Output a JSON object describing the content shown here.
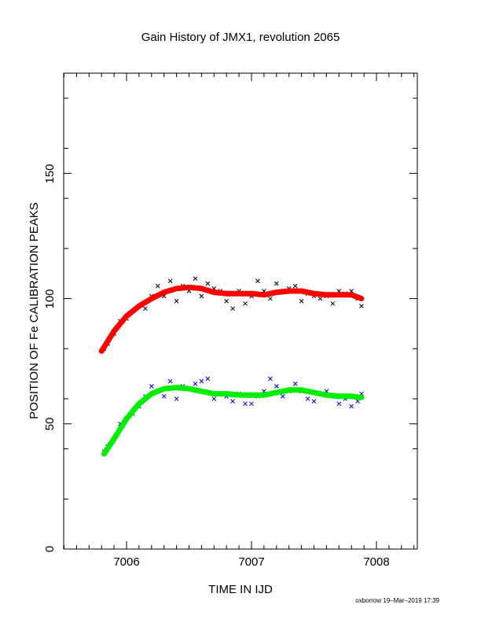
{
  "chart_data": {
    "type": "scatter",
    "title": "Gain History of JMX1, revolution 2065",
    "xlabel": "TIME IN IJD",
    "ylabel": "POSITION OF Fe CALIBRATION PEAKS",
    "xlim": [
      7005.5,
      7008.35
    ],
    "ylim": [
      0,
      190
    ],
    "x_ticks": [
      "7006",
      "7007",
      "7008"
    ],
    "y_ticks": [
      "0",
      "50",
      "100",
      "150"
    ],
    "grid": false,
    "legend": "none",
    "series": [
      {
        "marker": "x",
        "color": "#000000",
        "x": [
          7005.82,
          7005.85,
          7005.9,
          7005.95,
          7006.0,
          7006.05,
          7006.1,
          7006.15,
          7006.2,
          7006.25,
          7006.3,
          7006.35,
          7006.4,
          7006.45,
          7006.5,
          7006.55,
          7006.6,
          7006.65,
          7006.7,
          7006.75,
          7006.8,
          7006.85,
          7006.9,
          7006.95,
          7007.0,
          7007.05,
          7007.1,
          7007.15,
          7007.2,
          7007.25,
          7007.3,
          7007.35,
          7007.4,
          7007.45,
          7007.5,
          7007.55,
          7007.6,
          7007.65,
          7007.7,
          7007.75,
          7007.8,
          7007.85,
          7007.88
        ],
        "y": [
          80,
          82,
          86,
          91,
          92,
          95,
          97,
          96,
          101,
          105,
          101,
          107,
          99,
          105,
          103,
          108,
          101,
          106,
          104,
          103,
          99,
          96,
          103,
          98,
          101,
          107,
          103,
          100,
          106,
          103,
          104,
          105,
          99,
          102,
          101,
          100,
          101,
          98,
          103,
          102,
          103,
          100,
          97
        ]
      },
      {
        "marker": "x",
        "color": "#0000cc",
        "x": [
          7005.82,
          7005.85,
          7005.9,
          7005.95,
          7006.0,
          7006.05,
          7006.1,
          7006.15,
          7006.2,
          7006.25,
          7006.3,
          7006.35,
          7006.4,
          7006.45,
          7006.5,
          7006.55,
          7006.6,
          7006.65,
          7006.7,
          7006.75,
          7006.8,
          7006.85,
          7006.9,
          7006.95,
          7007.0,
          7007.05,
          7007.1,
          7007.15,
          7007.2,
          7007.25,
          7007.3,
          7007.35,
          7007.4,
          7007.45,
          7007.5,
          7007.55,
          7007.6,
          7007.65,
          7007.7,
          7007.75,
          7007.8,
          7007.85,
          7007.88
        ],
        "y": [
          39,
          41,
          44,
          50,
          52,
          54,
          57,
          61,
          65,
          63,
          61,
          67,
          60,
          65,
          64,
          66,
          67,
          68,
          60,
          62,
          61,
          59,
          62,
          58,
          58,
          61,
          63,
          68,
          65,
          61,
          63,
          66,
          63,
          60,
          59,
          62,
          63,
          61,
          58,
          60,
          57,
          59,
          62
        ]
      },
      {
        "name": "fit-red",
        "type": "line",
        "color": "#ff0000",
        "x": [
          7005.8,
          7005.9,
          7006.0,
          7006.1,
          7006.2,
          7006.3,
          7006.4,
          7006.5,
          7006.6,
          7006.7,
          7006.8,
          7006.9,
          7007.0,
          7007.1,
          7007.2,
          7007.3,
          7007.4,
          7007.5,
          7007.6,
          7007.7,
          7007.8,
          7007.88
        ],
        "y": [
          79,
          87,
          93,
          97,
          100,
          102.5,
          104,
          104.5,
          104,
          102.5,
          102,
          102,
          102,
          101.5,
          102.5,
          103,
          103,
          102,
          101.5,
          101.5,
          101.5,
          100
        ]
      },
      {
        "name": "fit-green",
        "type": "line",
        "color": "#00ee00",
        "x": [
          7005.82,
          7005.9,
          7006.0,
          7006.1,
          7006.2,
          7006.3,
          7006.4,
          7006.5,
          7006.6,
          7006.7,
          7006.8,
          7006.9,
          7007.0,
          7007.1,
          7007.2,
          7007.3,
          7007.4,
          7007.5,
          7007.6,
          7007.7,
          7007.8,
          7007.88
        ],
        "y": [
          38,
          44,
          52,
          58,
          62,
          64,
          64.5,
          64,
          63,
          62,
          62,
          61.5,
          61.5,
          61.5,
          62.5,
          63.5,
          63.5,
          62.5,
          61.5,
          61,
          61,
          60.5
        ]
      }
    ]
  },
  "footer": {
    "stamp": "oxborrow 19–Mar–2019 17:39"
  }
}
